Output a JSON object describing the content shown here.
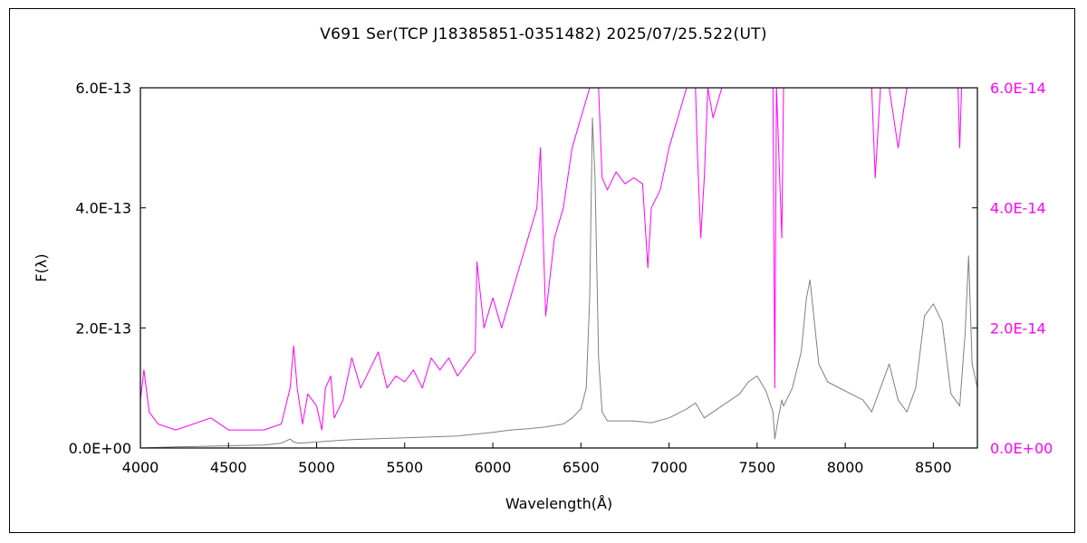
{
  "chart_data": {
    "type": "line",
    "title": "V691 Ser(TCP J18385851-0351482)   2025/07/25.522(UT)",
    "xlabel": "Wavelength(Å)",
    "ylabel": "F(λ)",
    "xlim": [
      4000,
      8750
    ],
    "ylim_left": [
      0,
      6e-13
    ],
    "ylim_right": [
      0,
      6e-14
    ],
    "x_ticks": [
      4000,
      4500,
      5000,
      5500,
      6000,
      6500,
      7000,
      7500,
      8000,
      8500
    ],
    "x_tick_labels": [
      "4000",
      "4500",
      "5000",
      "5500",
      "6000",
      "6500",
      "7000",
      "7500",
      "8000",
      "8500"
    ],
    "y_left_ticks": [
      0,
      2e-13,
      4e-13,
      6e-13
    ],
    "y_left_tick_labels": [
      "0.0E+00",
      "2.0E-13",
      "4.0E-13",
      "6.0E-13"
    ],
    "y_right_ticks": [
      0,
      2e-14,
      4e-14,
      6e-14
    ],
    "y_right_tick_labels": [
      "0.0E+00",
      "2.0E-14",
      "4.0E-14",
      "6.0E-14"
    ],
    "grid": false,
    "colors": {
      "left_series": "#808080",
      "right_series": "#ff00ff",
      "right_axis": "#ff00ff"
    },
    "series": [
      {
        "axis": "left",
        "x": [
          4000,
          4200,
          4400,
          4700,
          4800,
          4850,
          4870,
          4900,
          5000,
          5100,
          5200,
          5400,
          5600,
          5800,
          5900,
          6000,
          6100,
          6200,
          6300,
          6400,
          6450,
          6500,
          6530,
          6550,
          6565,
          6580,
          6600,
          6620,
          6650,
          6700,
          6800,
          6900,
          7000,
          7100,
          7150,
          7200,
          7250,
          7300,
          7400,
          7450,
          7500,
          7550,
          7590,
          7600,
          7620,
          7640,
          7650,
          7700,
          7750,
          7780,
          7800,
          7850,
          7900,
          8000,
          8100,
          8150,
          8200,
          8250,
          8300,
          8350,
          8400,
          8450,
          8500,
          8550,
          8600,
          8650,
          8680,
          8700,
          8720,
          8750
        ],
        "values": [
          0.0,
          2e-15,
          3e-15,
          5e-15,
          8e-15,
          1.5e-14,
          1e-14,
          8e-15,
          1e-14,
          1.2e-14,
          1.4e-14,
          1.6e-14,
          1.8e-14,
          2e-14,
          2.3e-14,
          2.6e-14,
          3e-14,
          3.2e-14,
          3.5e-14,
          4e-14,
          5e-14,
          6.5e-14,
          1e-13,
          2.5e-13,
          5.5e-13,
          4.5e-13,
          1.5e-13,
          6e-14,
          4.5e-14,
          4.5e-14,
          4.5e-14,
          4.2e-14,
          5e-14,
          6.5e-14,
          7.5e-14,
          5e-14,
          6e-14,
          7e-14,
          9e-14,
          1.1e-13,
          1.2e-13,
          9.5e-14,
          6e-14,
          1.5e-14,
          5e-14,
          8e-14,
          7e-14,
          1e-13,
          1.6e-13,
          2.5e-13,
          2.8e-13,
          1.4e-13,
          1.1e-13,
          9.5e-14,
          8e-14,
          6e-14,
          1e-13,
          1.4e-13,
          8e-14,
          6e-14,
          1e-13,
          2.2e-13,
          2.4e-13,
          2.1e-13,
          9e-14,
          7e-14,
          1.9e-13,
          3.2e-13,
          1.4e-13,
          1e-13
        ]
      },
      {
        "axis": "right",
        "x": [
          4000,
          4020,
          4050,
          4100,
          4200,
          4300,
          4400,
          4500,
          4600,
          4700,
          4800,
          4850,
          4870,
          4890,
          4920,
          4950,
          5000,
          5030,
          5050,
          5080,
          5100,
          5150,
          5200,
          5250,
          5300,
          5350,
          5400,
          5450,
          5500,
          5550,
          5600,
          5650,
          5700,
          5750,
          5800,
          5850,
          5900,
          5910,
          5950,
          6000,
          6050,
          6100,
          6150,
          6200,
          6250,
          6270,
          6300,
          6350,
          6400,
          6450,
          6500,
          6550,
          6570,
          6600,
          6620,
          6650,
          6700,
          6750,
          6800,
          6850,
          6880,
          6900,
          6950,
          7000,
          7050,
          7100,
          7150,
          7160,
          7180,
          7200,
          7220,
          7250,
          7300,
          7400,
          7500,
          7550,
          7590,
          7600,
          7610,
          7640,
          7650,
          7700,
          7750,
          7800,
          7850,
          7900,
          8000,
          8100,
          8150,
          8170,
          8200,
          8250,
          8300,
          8350,
          8400,
          8500,
          8600,
          8640,
          8650,
          8660,
          8700,
          8750
        ],
        "values": [
          8e-15,
          1.3e-14,
          6e-15,
          4e-15,
          3e-15,
          4e-15,
          5e-15,
          3e-15,
          3e-15,
          3e-15,
          4e-15,
          1e-14,
          1.7e-14,
          1e-14,
          4e-15,
          9e-15,
          7e-15,
          3e-15,
          1e-14,
          1.2e-14,
          5e-15,
          8e-15,
          1.5e-14,
          1e-14,
          1.3e-14,
          1.6e-14,
          1e-14,
          1.2e-14,
          1.1e-14,
          1.3e-14,
          1e-14,
          1.5e-14,
          1.3e-14,
          1.5e-14,
          1.2e-14,
          1.4e-14,
          1.6e-14,
          3.1e-14,
          2e-14,
          2.5e-14,
          2e-14,
          2.5e-14,
          3e-14,
          3.5e-14,
          4e-14,
          5e-14,
          2.2e-14,
          3.5e-14,
          4e-14,
          5e-14,
          5.5e-14,
          6e-14,
          6e-14,
          6e-14,
          4.5e-14,
          4.3e-14,
          4.6e-14,
          4.4e-14,
          4.5e-14,
          4.4e-14,
          3e-14,
          4e-14,
          4.3e-14,
          5e-14,
          5.5e-14,
          6e-14,
          6e-14,
          5e-14,
          3.5e-14,
          4.5e-14,
          6e-14,
          5.5e-14,
          6e-14,
          6e-14,
          6e-14,
          6e-14,
          6e-14,
          1e-14,
          6e-14,
          3.5e-14,
          6e-14,
          6e-14,
          6e-14,
          6e-14,
          6e-14,
          6e-14,
          6e-14,
          6e-14,
          6e-14,
          4.5e-14,
          6e-14,
          6e-14,
          5e-14,
          6e-14,
          6e-14,
          6e-14,
          6e-14,
          6e-14,
          5e-14,
          6e-14,
          6e-14,
          6e-14
        ]
      }
    ]
  }
}
